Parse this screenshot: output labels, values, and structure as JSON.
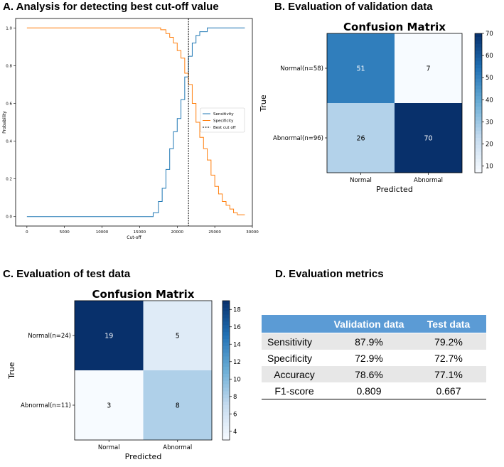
{
  "panels": {
    "a": "A. Analysis for detecting best cut-off value",
    "b": "B. Evaluation of validation data",
    "c": "C. Evaluation of test data",
    "d": "D. Evaluation metrics"
  },
  "chart_data": [
    {
      "type": "line",
      "title": "A. Analysis for detecting best cut-off value",
      "xlabel": "Cut-off",
      "ylabel": "Probability",
      "xlim": [
        -1500,
        30000
      ],
      "ylim": [
        -0.05,
        1.05
      ],
      "xticks": [
        0,
        5000,
        10000,
        15000,
        20000,
        25000,
        30000
      ],
      "yticks": [
        0.0,
        0.2,
        0.4,
        0.6,
        0.8,
        1.0
      ],
      "legend": {
        "position": "right",
        "entries": [
          "Sensitivity",
          "Specificity",
          "Best cut off"
        ]
      },
      "best_cutoff": 21500,
      "series": [
        {
          "name": "Sensitivity",
          "color": "#1f77b4",
          "points": [
            [
              0,
              0
            ],
            [
              16000,
              0
            ],
            [
              16800,
              0.02
            ],
            [
              17500,
              0.08
            ],
            [
              18000,
              0.15
            ],
            [
              18500,
              0.25
            ],
            [
              19000,
              0.36
            ],
            [
              19500,
              0.45
            ],
            [
              20000,
              0.52
            ],
            [
              20500,
              0.62
            ],
            [
              21000,
              0.74
            ],
            [
              21500,
              0.85
            ],
            [
              22000,
              0.92
            ],
            [
              22500,
              0.96
            ],
            [
              23000,
              0.98
            ],
            [
              24000,
              1.0
            ],
            [
              29000,
              1.0
            ]
          ]
        },
        {
          "name": "Specificity",
          "color": "#ff7f0e",
          "points": [
            [
              0,
              1.0
            ],
            [
              17000,
              1.0
            ],
            [
              17800,
              0.99
            ],
            [
              18500,
              0.97
            ],
            [
              19000,
              0.95
            ],
            [
              19500,
              0.92
            ],
            [
              20000,
              0.88
            ],
            [
              20500,
              0.84
            ],
            [
              21000,
              0.76
            ],
            [
              21500,
              0.7
            ],
            [
              22000,
              0.6
            ],
            [
              22500,
              0.5
            ],
            [
              23000,
              0.42
            ],
            [
              23500,
              0.36
            ],
            [
              24000,
              0.3
            ],
            [
              24500,
              0.22
            ],
            [
              25000,
              0.16
            ],
            [
              25500,
              0.12
            ],
            [
              26000,
              0.08
            ],
            [
              26500,
              0.06
            ],
            [
              27000,
              0.04
            ],
            [
              27500,
              0.02
            ],
            [
              28000,
              0.01
            ],
            [
              29000,
              0.01
            ]
          ]
        },
        {
          "name": "Best cut off",
          "color": "#000000",
          "style": "dotted",
          "x": 21500
        }
      ]
    },
    {
      "type": "heatmap",
      "title": "Confusion Matrix",
      "xlabel": "Predicted",
      "ylabel": "True",
      "row_labels": [
        "Normal(n=58)",
        "Abnormal(n=96)"
      ],
      "col_labels": [
        "Normal",
        "Abnormal"
      ],
      "values": [
        [
          51,
          7
        ],
        [
          26,
          70
        ]
      ],
      "colorbar": {
        "min": 7,
        "max": 70,
        "ticks": [
          10,
          20,
          30,
          40,
          50,
          60,
          70
        ]
      }
    },
    {
      "type": "heatmap",
      "title": "Confusion Matrix",
      "xlabel": "Predicted",
      "ylabel": "True",
      "row_labels": [
        "Normal(n=24)",
        "Abnormal(n=11)"
      ],
      "col_labels": [
        "Normal",
        "Abnormal"
      ],
      "values": [
        [
          19,
          5
        ],
        [
          3,
          8
        ]
      ],
      "colorbar": {
        "min": 3,
        "max": 19,
        "ticks": [
          4,
          6,
          8,
          10,
          12,
          14,
          16,
          18
        ]
      }
    },
    {
      "type": "table",
      "columns": [
        "",
        "Validation data",
        "Test data"
      ],
      "rows": [
        [
          "Sensitivity",
          "87.9%",
          "79.2%"
        ],
        [
          "Specificity",
          "72.9%",
          "72.7%"
        ],
        [
          "Accuracy",
          "78.6%",
          "77.1%"
        ],
        [
          "F1-score",
          "0.809",
          "0.667"
        ]
      ]
    }
  ]
}
